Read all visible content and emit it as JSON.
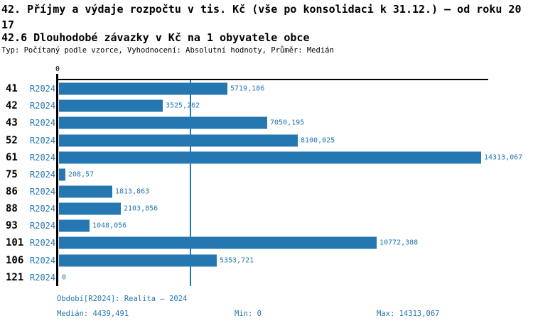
{
  "page": {
    "title_line1": "42. Příjmy a výdaje rozpočtu v tis. Kč (vše po konsolidaci k 31.12.) – od roku 20",
    "title_line2": "17",
    "section_title": "42.6 Dlouhodobé závazky v Kč na 1 obyvatele obce",
    "meta_line": "Typ: Počítaný podle vzorce, Vyhodnocení: Absolutní hodnoty, Průměr: Medián"
  },
  "colors": {
    "bar": "#2577b2",
    "median_line": "#2577b2",
    "text_blue": "#2577b2",
    "axis": "#000000"
  },
  "chart_data": {
    "type": "bar",
    "orientation": "horizontal",
    "title": "42.6 Dlouhodobé závazky v Kč na 1 obyvatele obce",
    "x_axis": {
      "min": 0,
      "zero_tick_label": "0",
      "max_value": 14313.067,
      "grid": false
    },
    "median_value": 4439.491,
    "series_label": "R2024",
    "categories": [
      "41",
      "42",
      "43",
      "52",
      "61",
      "75",
      "86",
      "88",
      "93",
      "101",
      "106",
      "121"
    ],
    "rows": [
      {
        "id": "41",
        "series": "R2024",
        "value": 5719.186,
        "display": "5719,186"
      },
      {
        "id": "42",
        "series": "R2024",
        "value": 3525.262,
        "display": "3525,262"
      },
      {
        "id": "43",
        "series": "R2024",
        "value": 7050.195,
        "display": "7050,195"
      },
      {
        "id": "52",
        "series": "R2024",
        "value": 8100.025,
        "display": "8100,025"
      },
      {
        "id": "61",
        "series": "R2024",
        "value": 14313.067,
        "display": "14313,067"
      },
      {
        "id": "75",
        "series": "R2024",
        "value": 208.57,
        "display": "208,57"
      },
      {
        "id": "86",
        "series": "R2024",
        "value": 1813.863,
        "display": "1813,863"
      },
      {
        "id": "88",
        "series": "R2024",
        "value": 2103.856,
        "display": "2103,856"
      },
      {
        "id": "93",
        "series": "R2024",
        "value": 1048.056,
        "display": "1048,056"
      },
      {
        "id": "101",
        "series": "R2024",
        "value": 10772.388,
        "display": "10772,388"
      },
      {
        "id": "106",
        "series": "R2024",
        "value": 5353.721,
        "display": "5353,721"
      },
      {
        "id": "121",
        "series": "R2024",
        "value": 0,
        "display": "0"
      }
    ]
  },
  "footer": {
    "period_label": "Období[R2024]: Realita – 2024",
    "median_label": "Medián: 4439,491",
    "min_label": "Min: 0",
    "max_label": "Max: 14313,067"
  }
}
